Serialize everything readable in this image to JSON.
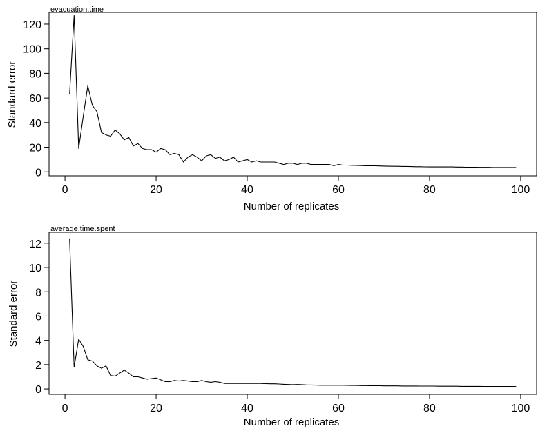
{
  "chart_data": [
    {
      "type": "line",
      "title": "evacuation.time",
      "xlabel": "Number of replicates",
      "ylabel": "Standard error",
      "xlim": [
        1,
        99
      ],
      "ylim": [
        0,
        127
      ],
      "x_ticks": [
        "0",
        "20",
        "40",
        "60",
        "80",
        "100"
      ],
      "y_ticks": [
        "0",
        "20",
        "40",
        "60",
        "80",
        "100",
        "120"
      ],
      "grid": false,
      "series": [
        {
          "x": [
            1,
            2,
            3,
            4,
            5,
            6,
            7,
            8,
            9,
            10,
            11,
            12,
            13,
            14,
            15,
            16,
            17,
            18,
            19,
            20,
            21,
            22,
            23,
            24,
            25,
            26,
            27,
            28,
            29,
            30,
            31,
            32,
            33,
            34,
            35,
            36,
            37,
            38,
            39,
            40,
            41,
            42,
            43,
            44,
            45,
            46,
            47,
            48,
            49,
            50,
            51,
            52,
            53,
            54,
            55,
            56,
            57,
            58,
            59,
            60,
            61,
            62,
            63,
            64,
            65,
            66,
            67,
            68,
            69,
            70,
            71,
            72,
            73,
            74,
            75,
            76,
            77,
            78,
            79,
            80,
            81,
            82,
            83,
            84,
            85,
            86,
            87,
            88,
            89,
            90,
            91,
            92,
            93,
            94,
            95,
            96,
            97,
            98,
            99
          ],
          "y": [
            63,
            127,
            19,
            45,
            70,
            54,
            49,
            32,
            30,
            29,
            34,
            31,
            26,
            28,
            21,
            23,
            19,
            18,
            18,
            16,
            19,
            18,
            14,
            15,
            14,
            8,
            12,
            14,
            12,
            9,
            13,
            14,
            11,
            12,
            9,
            10,
            12,
            8,
            9,
            10,
            8,
            9,
            8,
            8,
            8,
            8,
            7,
            6,
            7,
            7,
            6,
            7,
            7,
            6,
            6,
            6,
            6,
            6,
            5,
            6,
            5.5,
            5.5,
            5.3,
            5.2,
            5.1,
            5,
            5,
            4.9,
            4.8,
            4.7,
            4.6,
            4.5,
            4.5,
            4.4,
            4.4,
            4.3,
            4.2,
            4.2,
            4.1,
            4,
            4,
            4,
            4,
            4,
            4,
            3.9,
            3.9,
            3.8,
            3.8,
            3.8,
            3.7,
            3.7,
            3.7,
            3.6,
            3.6,
            3.6,
            3.6,
            3.6,
            3.6
          ]
        }
      ]
    },
    {
      "type": "line",
      "title": "average.time.spent",
      "xlabel": "Number of replicates",
      "ylabel": "Standard error",
      "xlim": [
        1,
        99
      ],
      "ylim": [
        0,
        12.4
      ],
      "x_ticks": [
        "0",
        "20",
        "40",
        "60",
        "80",
        "100"
      ],
      "y_ticks": [
        "0",
        "2",
        "4",
        "6",
        "8",
        "10",
        "12"
      ],
      "grid": false,
      "series": [
        {
          "x": [
            1,
            2,
            3,
            4,
            5,
            6,
            7,
            8,
            9,
            10,
            11,
            12,
            13,
            14,
            15,
            16,
            17,
            18,
            19,
            20,
            21,
            22,
            23,
            24,
            25,
            26,
            27,
            28,
            29,
            30,
            31,
            32,
            33,
            34,
            35,
            36,
            37,
            38,
            39,
            40,
            41,
            42,
            43,
            44,
            45,
            46,
            47,
            48,
            49,
            50,
            51,
            52,
            53,
            54,
            55,
            56,
            57,
            58,
            59,
            60,
            61,
            62,
            63,
            64,
            65,
            66,
            67,
            68,
            69,
            70,
            71,
            72,
            73,
            74,
            75,
            76,
            77,
            78,
            79,
            80,
            81,
            82,
            83,
            84,
            85,
            86,
            87,
            88,
            89,
            90,
            91,
            92,
            93,
            94,
            95,
            96,
            97,
            98,
            99
          ],
          "y": [
            12.4,
            1.8,
            4.1,
            3.5,
            2.4,
            2.3,
            1.9,
            1.7,
            1.9,
            1.1,
            1.05,
            1.3,
            1.55,
            1.3,
            1.0,
            1.0,
            0.9,
            0.8,
            0.85,
            0.9,
            0.75,
            0.6,
            0.6,
            0.7,
            0.65,
            0.7,
            0.65,
            0.6,
            0.6,
            0.7,
            0.6,
            0.55,
            0.6,
            0.55,
            0.45,
            0.45,
            0.45,
            0.45,
            0.45,
            0.45,
            0.45,
            0.45,
            0.45,
            0.43,
            0.42,
            0.42,
            0.4,
            0.38,
            0.36,
            0.35,
            0.36,
            0.35,
            0.33,
            0.32,
            0.31,
            0.3,
            0.3,
            0.3,
            0.3,
            0.3,
            0.3,
            0.29,
            0.28,
            0.28,
            0.27,
            0.27,
            0.26,
            0.26,
            0.26,
            0.25,
            0.25,
            0.25,
            0.25,
            0.24,
            0.24,
            0.24,
            0.24,
            0.23,
            0.23,
            0.23,
            0.23,
            0.22,
            0.22,
            0.22,
            0.22,
            0.22,
            0.21,
            0.21,
            0.21,
            0.21,
            0.21,
            0.2,
            0.2,
            0.2,
            0.2,
            0.2,
            0.2,
            0.2,
            0.2
          ]
        }
      ]
    }
  ]
}
